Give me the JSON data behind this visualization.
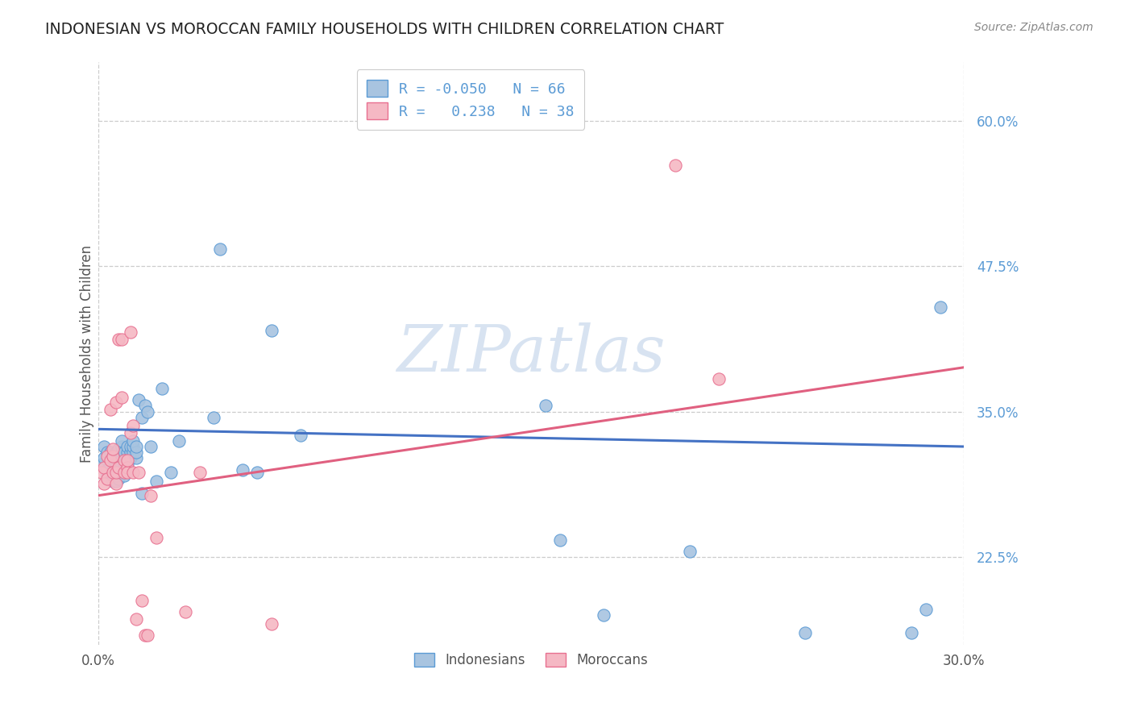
{
  "title": "INDONESIAN VS MOROCCAN FAMILY HOUSEHOLDS WITH CHILDREN CORRELATION CHART",
  "source": "Source: ZipAtlas.com",
  "ylabel": "Family Households with Children",
  "ytick_vals": [
    0.6,
    0.475,
    0.35,
    0.225
  ],
  "ytick_labels": [
    "60.0%",
    "47.5%",
    "35.0%",
    "22.5%"
  ],
  "xtick_vals": [
    0.0,
    0.3
  ],
  "xtick_labels": [
    "0.0%",
    "30.0%"
  ],
  "legend_blue_r": "-0.050",
  "legend_blue_n": "66",
  "legend_pink_r": "0.238",
  "legend_pink_n": "38",
  "blue_fill": "#a8c4e0",
  "pink_fill": "#f5b8c4",
  "blue_edge": "#5b9bd5",
  "pink_edge": "#e87090",
  "blue_line": "#4472c4",
  "pink_line": "#e06080",
  "grid_color": "#cccccc",
  "watermark": "ZIPatlas",
  "watermark_color": "#c8d8ec",
  "xmin": 0.0,
  "xmax": 0.3,
  "ymin": 0.15,
  "ymax": 0.65,
  "blue_line_x": [
    0.0,
    0.3
  ],
  "blue_line_y": [
    0.335,
    0.32
  ],
  "pink_line_x": [
    0.0,
    0.3
  ],
  "pink_line_y": [
    0.278,
    0.388
  ],
  "indonesian_x": [
    0.001,
    0.002,
    0.002,
    0.003,
    0.003,
    0.003,
    0.004,
    0.004,
    0.004,
    0.005,
    0.005,
    0.005,
    0.005,
    0.006,
    0.006,
    0.006,
    0.006,
    0.007,
    0.007,
    0.007,
    0.007,
    0.008,
    0.008,
    0.008,
    0.008,
    0.009,
    0.009,
    0.009,
    0.01,
    0.01,
    0.01,
    0.01,
    0.01,
    0.011,
    0.011,
    0.011,
    0.012,
    0.012,
    0.012,
    0.013,
    0.013,
    0.013,
    0.014,
    0.015,
    0.015,
    0.016,
    0.017,
    0.018,
    0.02,
    0.022,
    0.025,
    0.028,
    0.04,
    0.042,
    0.05,
    0.055,
    0.06,
    0.07,
    0.155,
    0.16,
    0.175,
    0.205,
    0.245,
    0.282,
    0.287,
    0.292
  ],
  "indonesian_y": [
    0.305,
    0.31,
    0.32,
    0.295,
    0.3,
    0.315,
    0.295,
    0.305,
    0.315,
    0.29,
    0.295,
    0.3,
    0.31,
    0.29,
    0.295,
    0.305,
    0.315,
    0.292,
    0.298,
    0.308,
    0.318,
    0.31,
    0.315,
    0.32,
    0.325,
    0.295,
    0.305,
    0.315,
    0.3,
    0.305,
    0.31,
    0.315,
    0.32,
    0.31,
    0.315,
    0.32,
    0.315,
    0.32,
    0.325,
    0.31,
    0.315,
    0.32,
    0.36,
    0.28,
    0.345,
    0.355,
    0.35,
    0.32,
    0.29,
    0.37,
    0.298,
    0.325,
    0.345,
    0.49,
    0.3,
    0.298,
    0.42,
    0.33,
    0.355,
    0.24,
    0.175,
    0.23,
    0.16,
    0.16,
    0.18,
    0.44
  ],
  "moroccan_x": [
    0.001,
    0.002,
    0.002,
    0.003,
    0.003,
    0.004,
    0.004,
    0.005,
    0.005,
    0.005,
    0.006,
    0.006,
    0.006,
    0.007,
    0.007,
    0.008,
    0.008,
    0.009,
    0.009,
    0.01,
    0.01,
    0.01,
    0.011,
    0.011,
    0.012,
    0.012,
    0.013,
    0.014,
    0.015,
    0.016,
    0.017,
    0.018,
    0.02,
    0.03,
    0.035,
    0.06,
    0.2,
    0.215
  ],
  "moroccan_y": [
    0.298,
    0.288,
    0.302,
    0.312,
    0.292,
    0.308,
    0.352,
    0.312,
    0.318,
    0.298,
    0.288,
    0.298,
    0.358,
    0.302,
    0.412,
    0.412,
    0.362,
    0.298,
    0.308,
    0.302,
    0.298,
    0.308,
    0.332,
    0.418,
    0.298,
    0.338,
    0.172,
    0.298,
    0.188,
    0.158,
    0.158,
    0.278,
    0.242,
    0.178,
    0.298,
    0.168,
    0.562,
    0.378
  ]
}
